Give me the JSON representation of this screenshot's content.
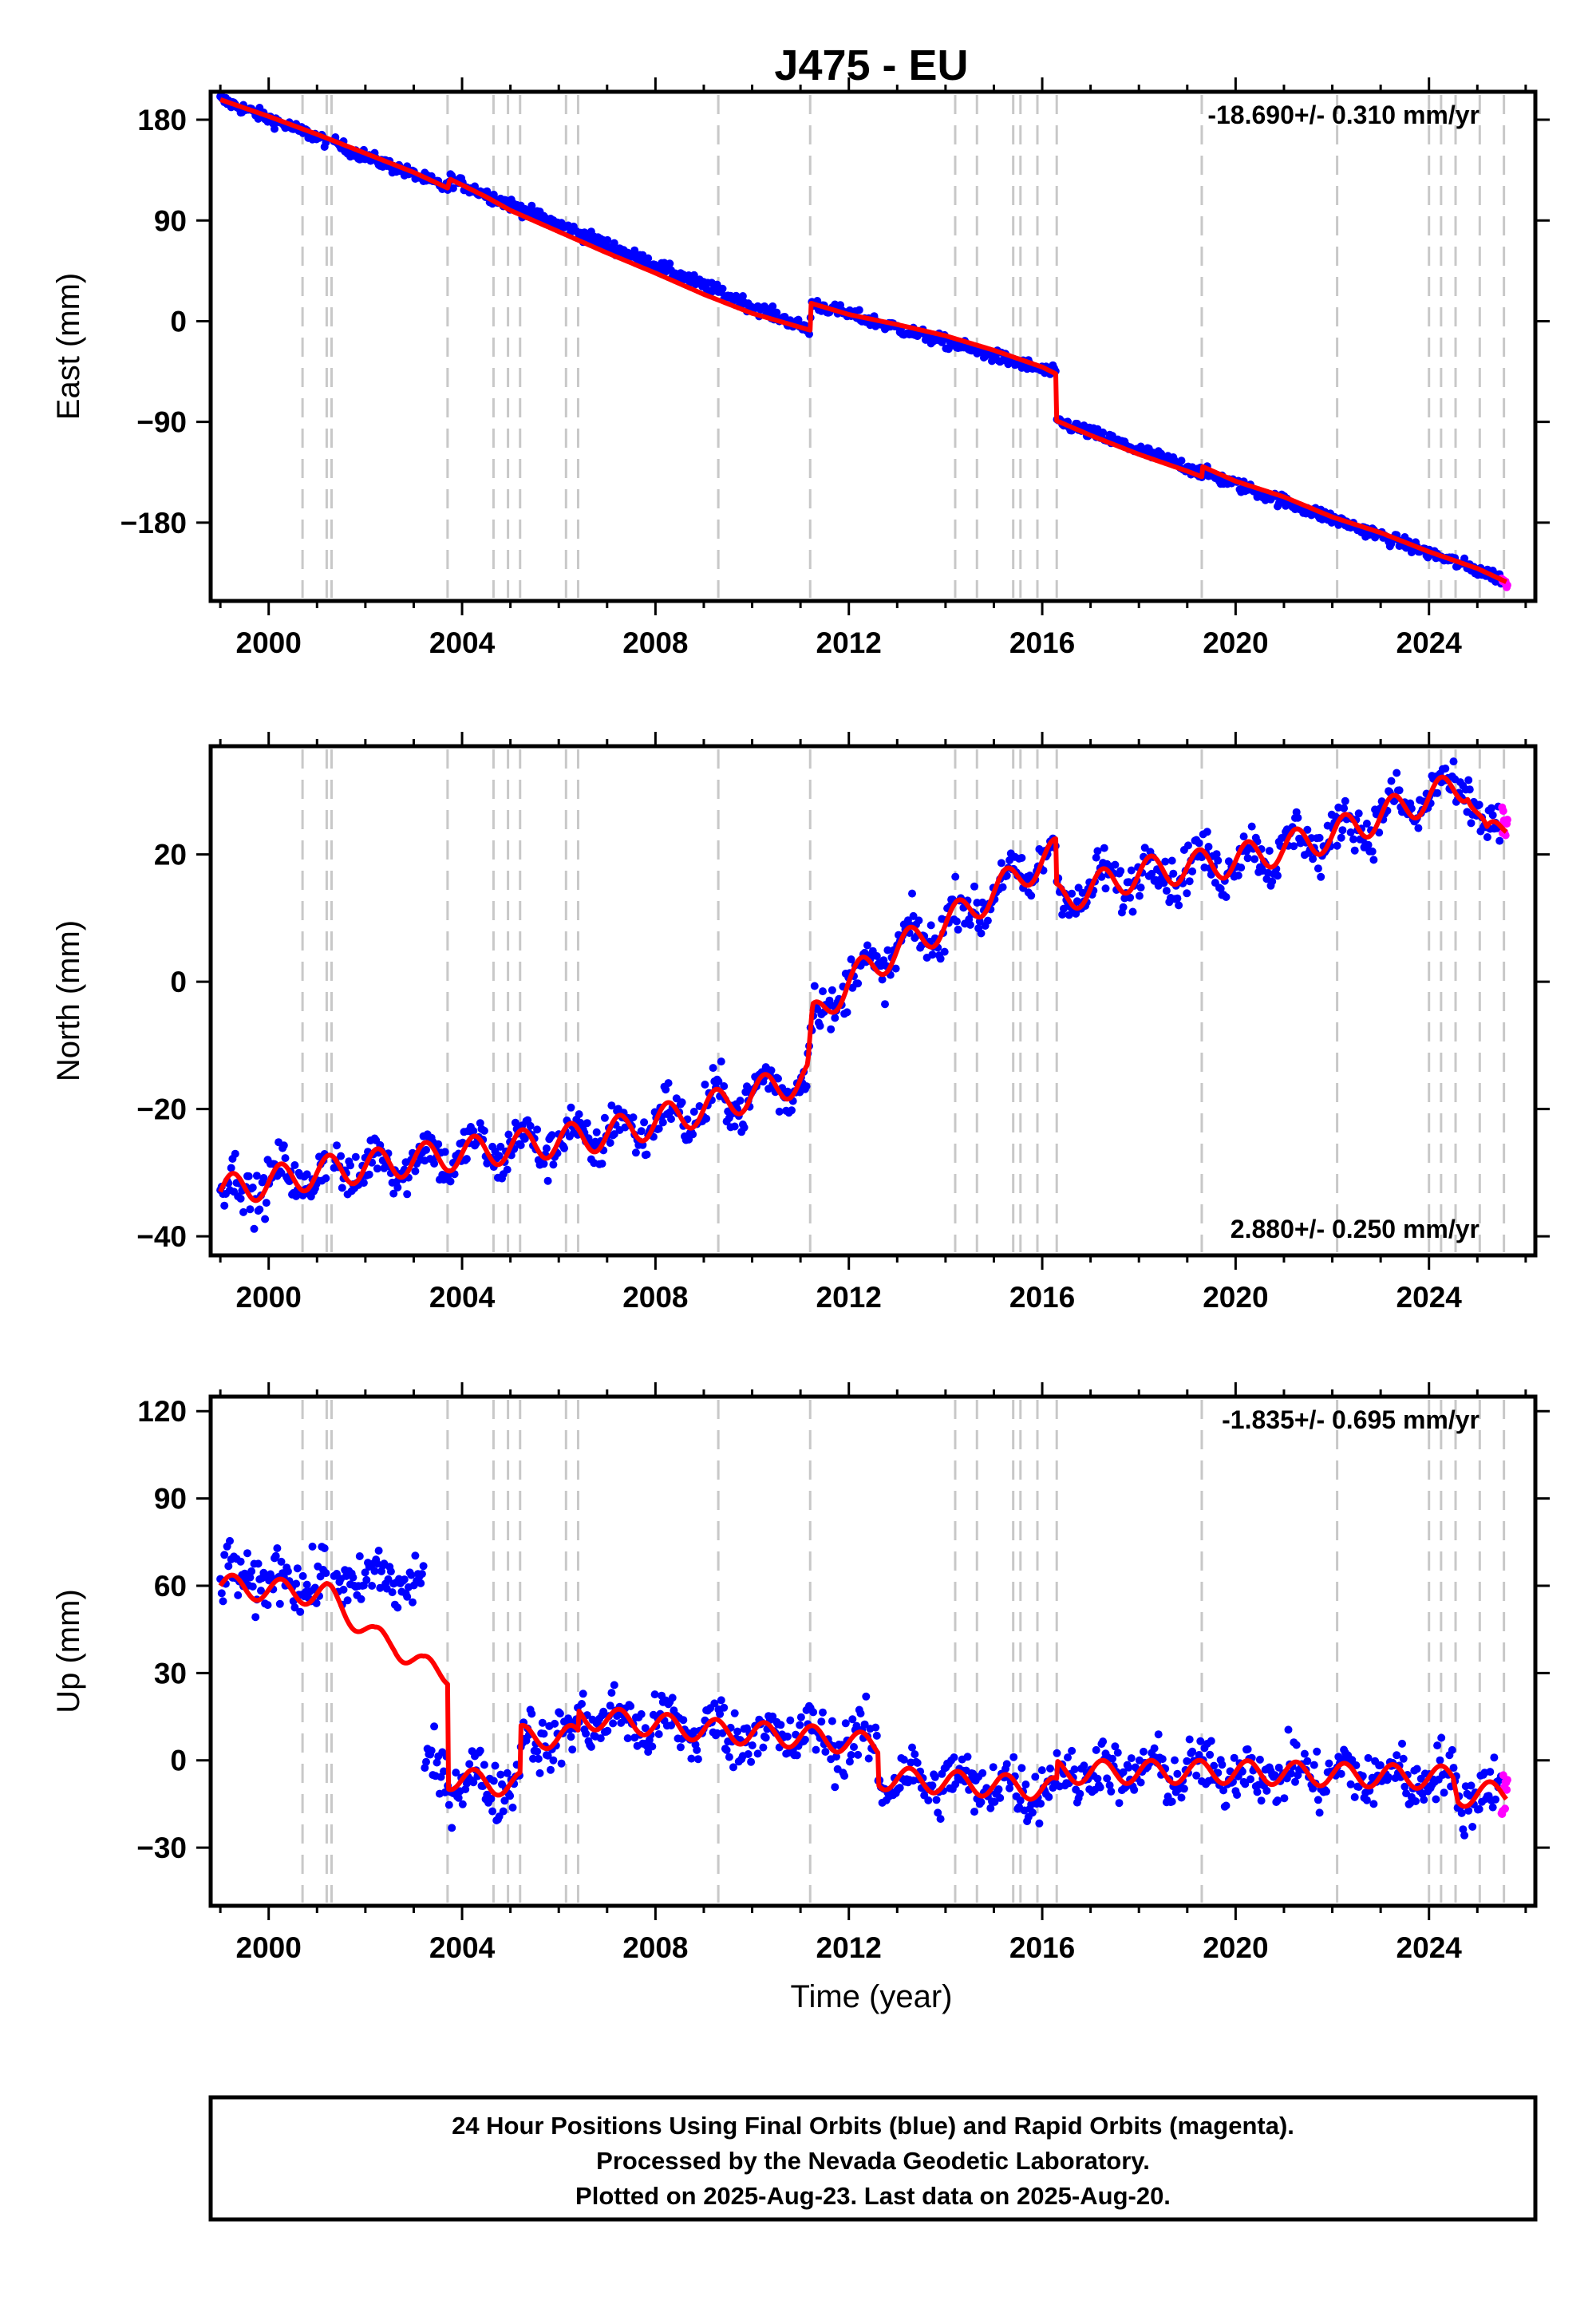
{
  "title": "J475 - EU",
  "footer": {
    "line1": "24 Hour Positions Using Final Orbits (blue) and Rapid Orbits (magenta).",
    "line2": "Processed by the Nevada Geodetic Laboratory.",
    "line3": "Plotted on 2025-Aug-23. Last data on 2025-Aug-20."
  },
  "colors": {
    "final_orbits": "#0000ff",
    "rapid_orbits": "#ff00ff",
    "model": "#ff0000",
    "event_lines": "#c8c8c8"
  },
  "chart_data": [
    {
      "type": "scatter",
      "ylabel": "East (mm)",
      "xlabel": "",
      "rate_text": "-18.690+/- 0.310 mm/yr",
      "rate_position": "top-right",
      "xlim": [
        1998.8,
        2026.2
      ],
      "ylim": [
        -250,
        205
      ],
      "x_ticks": [
        2000,
        2004,
        2008,
        2012,
        2016,
        2020,
        2024
      ],
      "x_tick_labels": [
        "2000",
        "2004",
        "2008",
        "2012",
        "2016",
        "2020",
        "2024"
      ],
      "y_ticks": [
        -180,
        -90,
        0,
        90,
        180
      ],
      "y_tick_labels": [
        "−180",
        "−90",
        "0",
        "90",
        "180"
      ],
      "event_lines_year": [
        2000.7,
        2001.2,
        2001.3,
        2003.7,
        2004.65,
        2004.95,
        2005.2,
        2006.15,
        2006.4,
        2009.3,
        2011.2,
        2014.2,
        2014.65,
        2015.4,
        2015.55,
        2015.9,
        2016.3,
        2019.3,
        2022.1,
        2024.0,
        2024.25,
        2024.55,
        2025.05,
        2025.55
      ],
      "series": [
        {
          "name": "",
          "role": "model",
          "x": [
            1999.0,
            2000.0,
            2001.0,
            2002.0,
            2003.0,
            2003.7,
            2003.75,
            2004.5,
            2005.0,
            2006.0,
            2007.0,
            2008.0,
            2009.0,
            2010.0,
            2011.2,
            2011.22,
            2012.0,
            2013.0,
            2014.0,
            2015.0,
            2016.0,
            2016.28,
            2016.3,
            2017.0,
            2018.0,
            2019.0,
            2019.3,
            2019.32,
            2020.0,
            2021.0,
            2022.0,
            2023.0,
            2024.0,
            2025.0,
            2025.6
          ],
          "y": [
            198,
            183,
            167,
            150,
            133,
            119,
            127,
            111,
            99,
            80,
            61,
            43,
            24,
            7,
            -8,
            16,
            6,
            -3,
            -13,
            -26,
            -41,
            -47,
            -89,
            -102,
            -119,
            -134,
            -139,
            -130,
            -143,
            -157,
            -175,
            -189,
            -206,
            -221,
            -233
          ]
        },
        {
          "name": "",
          "role": "final-orbits",
          "noise": 4,
          "x": [
            1999.0,
            2003.7,
            2003.75,
            2011.2,
            2011.22,
            2016.28,
            2016.3,
            2025.5
          ],
          "y": [
            198,
            119,
            127,
            -8,
            16,
            -47,
            -89,
            -230
          ]
        },
        {
          "name": "",
          "role": "rapid-orbits",
          "noise": 2,
          "x": [
            2025.5,
            2025.62
          ],
          "y": [
            -230,
            -236
          ]
        }
      ]
    },
    {
      "type": "scatter",
      "ylabel": "North (mm)",
      "xlabel": "",
      "rate_text": "2.880+/- 0.250 mm/yr",
      "rate_position": "bottom-right",
      "xlim": [
        1998.8,
        2026.2
      ],
      "ylim": [
        -43,
        37
      ],
      "x_ticks": [
        2000,
        2004,
        2008,
        2012,
        2016,
        2020,
        2024
      ],
      "x_tick_labels": [
        "2000",
        "2004",
        "2008",
        "2012",
        "2016",
        "2020",
        "2024"
      ],
      "y_ticks": [
        -40,
        -20,
        0,
        20
      ],
      "y_tick_labels": [
        "−40",
        "−20",
        "0",
        "20"
      ],
      "event_lines_year": [
        2000.7,
        2001.2,
        2001.3,
        2003.7,
        2004.65,
        2004.95,
        2005.2,
        2006.15,
        2006.4,
        2009.3,
        2011.2,
        2014.2,
        2014.65,
        2015.4,
        2015.55,
        2015.9,
        2016.3,
        2019.3,
        2022.1,
        2024.0,
        2024.25,
        2024.55,
        2025.05,
        2025.55
      ],
      "series": [
        {
          "name": "",
          "role": "model",
          "seasonal": 2.5,
          "x": [
            1999.0,
            2001.0,
            2003.0,
            2005.0,
            2007.0,
            2009.0,
            2011.15,
            2011.25,
            2012.0,
            2013.0,
            2014.0,
            2015.0,
            2016.0,
            2016.28,
            2016.3,
            2018.0,
            2020.0,
            2022.0,
            2023.0,
            2024.0,
            2024.8,
            2025.2,
            2025.6
          ],
          "y": [
            -33,
            -30,
            -28,
            -26,
            -24,
            -20,
            -15,
            -6,
            0,
            5,
            9,
            14,
            19,
            20,
            13,
            17,
            19,
            23,
            26,
            29,
            31,
            22,
            25
          ]
        },
        {
          "name": "",
          "role": "final-orbits",
          "noise": 2.6,
          "x": [
            1999.0,
            2001.0,
            2003.0,
            2005.0,
            2007.0,
            2009.0,
            2011.15,
            2011.25,
            2012.0,
            2013.0,
            2014.0,
            2015.0,
            2016.0,
            2016.28,
            2016.3,
            2018.0,
            2020.0,
            2022.0,
            2023.0,
            2024.0,
            2024.8,
            2025.2,
            2025.5
          ],
          "y": [
            -33,
            -30,
            -28,
            -26,
            -24,
            -20,
            -15,
            -6,
            0,
            5,
            9,
            14,
            19,
            20,
            13,
            17,
            19,
            23,
            26,
            29,
            31,
            22,
            24
          ]
        },
        {
          "name": "",
          "role": "rapid-orbits",
          "noise": 2.5,
          "x": [
            2025.5,
            2025.62
          ],
          "y": [
            24,
            26
          ]
        }
      ]
    },
    {
      "type": "scatter",
      "ylabel": "Up (mm)",
      "xlabel": "Time (year)",
      "rate_text": "-1.835+/- 0.695 mm/yr",
      "rate_position": "top-right",
      "xlim": [
        1998.8,
        2026.2
      ],
      "ylim": [
        -50,
        125
      ],
      "x_ticks": [
        2000,
        2004,
        2008,
        2012,
        2016,
        2020,
        2024
      ],
      "x_tick_labels": [
        "2000",
        "2004",
        "2008",
        "2012",
        "2016",
        "2020",
        "2024"
      ],
      "y_ticks": [
        -30,
        0,
        30,
        60,
        90,
        120
      ],
      "y_tick_labels": [
        "−30",
        "0",
        "30",
        "60",
        "90",
        "120"
      ],
      "event_lines_year": [
        2000.7,
        2001.2,
        2001.3,
        2003.7,
        2004.65,
        2004.95,
        2005.2,
        2006.15,
        2006.4,
        2009.3,
        2011.2,
        2014.2,
        2014.65,
        2015.4,
        2015.55,
        2015.9,
        2016.3,
        2019.3,
        2022.1,
        2024.0,
        2024.25,
        2024.55,
        2025.05,
        2025.55
      ],
      "series": [
        {
          "name": "",
          "role": "model",
          "seasonal": 4,
          "x": [
            1999.0,
            2001.2,
            2001.3,
            2002.2,
            2002.6,
            2003.2,
            2003.7,
            2003.72,
            2004.65,
            2005.2,
            2005.22,
            2006.4,
            2006.42,
            2009.3,
            2011.2,
            2012.6,
            2012.62,
            2016.3,
            2016.32,
            2020.0,
            2024.5,
            2024.6,
            2025.6
          ],
          "y": [
            60,
            57,
            56,
            42,
            40,
            32,
            30,
            -6,
            -8,
            -8,
            8,
            8,
            15,
            10,
            8,
            5,
            -6,
            -10,
            -4,
            -4,
            -6,
            -12,
            -11
          ]
        },
        {
          "name": "",
          "role": "final-orbits",
          "noise": 7,
          "x": [
            1999.0,
            2003.2,
            2003.22,
            2003.7,
            2003.72,
            2004.65,
            2005.2,
            2005.22,
            2006.4,
            2006.42,
            2009.3,
            2011.2,
            2012.6,
            2012.62,
            2016.3,
            2016.32,
            2020.0,
            2024.5,
            2024.6,
            2025.5
          ],
          "y": [
            62,
            62,
            -4,
            -4,
            -6,
            -8,
            -8,
            8,
            8,
            15,
            10,
            8,
            5,
            -6,
            -10,
            -4,
            -4,
            -6,
            -12,
            -11
          ]
        },
        {
          "name": "",
          "role": "rapid-orbits",
          "noise": 7,
          "x": [
            2025.5,
            2025.62
          ],
          "y": [
            -11,
            -9
          ]
        }
      ]
    }
  ]
}
